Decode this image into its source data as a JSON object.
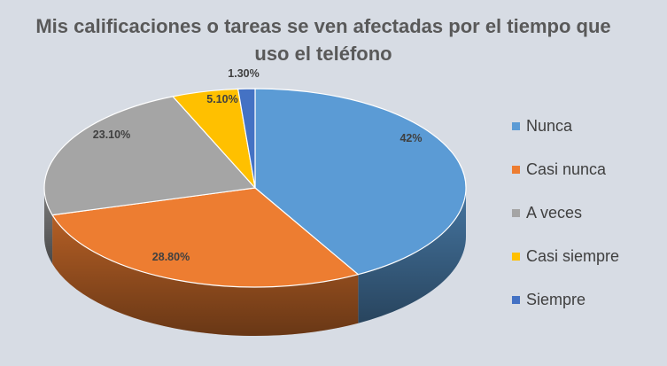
{
  "chart_data": {
    "type": "pie",
    "style": "3d",
    "title": "Mis calificaciones o tareas se ven afectadas por el tiempo que uso el teléfono",
    "categories": [
      "Nunca",
      "Casi nunca",
      "A veces",
      "Casi siempre",
      "Siempre"
    ],
    "values": [
      42,
      28.8,
      23.1,
      5.1,
      1.3
    ],
    "data_labels": [
      "42%",
      "28.80%",
      "23.10%",
      "5.10%",
      "1.30%"
    ],
    "colors": [
      "#5B9BD5",
      "#ED7D31",
      "#A5A5A5",
      "#FFC000",
      "#4472C4"
    ],
    "legend_position": "right"
  }
}
